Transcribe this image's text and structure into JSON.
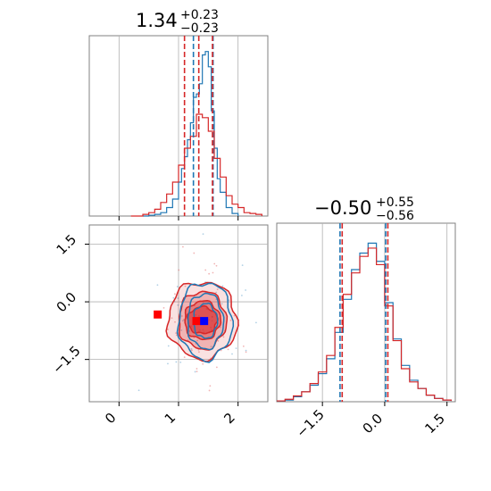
{
  "colors": {
    "blue": "#1f77b4",
    "red": "#d62728",
    "grid": "#b0b0b0",
    "axis": "#808080",
    "blue_marker": "#0000ff",
    "red_marker": "#ff0000"
  },
  "chart_data": {
    "type": "corner",
    "grid": true,
    "panels": {
      "top_left": {
        "type": "histogram",
        "parameter": "x",
        "title": {
          "median": "1.34",
          "plus": "+0.23",
          "minus": "−0.23"
        },
        "xlim": [
          -0.5,
          2.5
        ],
        "quantiles": {
          "blue": [
            1.25,
            1.58
          ],
          "red": [
            1.1,
            1.34,
            1.57
          ]
        },
        "series": [
          {
            "color": "blue",
            "x": [
              0.4,
              0.5,
              0.6,
              0.7,
              0.8,
              0.9,
              1.0,
              1.05,
              1.1,
              1.15,
              1.2,
              1.25,
              1.3,
              1.35,
              1.4,
              1.45,
              1.5,
              1.55,
              1.6,
              1.65,
              1.7,
              1.8,
              1.9,
              2.0
            ],
            "density": [
              0,
              0.005,
              0.01,
              0.02,
              0.05,
              0.1,
              0.2,
              0.28,
              0.35,
              0.45,
              0.55,
              0.7,
              0.72,
              0.78,
              0.95,
              0.97,
              0.88,
              0.62,
              0.4,
              0.22,
              0.14,
              0.05,
              0.015,
              0
            ]
          },
          {
            "color": "red",
            "x": [
              0.2,
              0.4,
              0.5,
              0.6,
              0.7,
              0.8,
              0.9,
              1.0,
              1.1,
              1.2,
              1.3,
              1.4,
              1.5,
              1.6,
              1.7,
              1.8,
              1.9,
              2.0,
              2.1,
              2.2,
              2.3,
              2.4
            ],
            "density": [
              0,
              0.01,
              0.02,
              0.04,
              0.08,
              0.13,
              0.2,
              0.3,
              0.4,
              0.47,
              0.6,
              0.58,
              0.5,
              0.34,
              0.23,
              0.12,
              0.07,
              0.05,
              0.02,
              0.015,
              0.01,
              0
            ]
          }
        ]
      },
      "bottom_left": {
        "type": "2d-contour",
        "xlim": [
          -0.5,
          2.5
        ],
        "ylim": [
          -2.6,
          2.0
        ],
        "xticks": [
          "0",
          "1",
          "2"
        ],
        "yticks": [
          "1.5",
          "0.0",
          "−1.5"
        ],
        "contours": [
          {
            "color": "red",
            "center": [
              1.4,
              -0.48
            ],
            "radii": [
              [
                0.58,
                1.0
              ],
              [
                0.4,
                0.75
              ],
              [
                0.3,
                0.5
              ],
              [
                0.25,
                0.35
              ]
            ]
          },
          {
            "color": "blue",
            "center": [
              1.45,
              -0.5
            ],
            "radii": [
              [
                0.45,
                1.0
              ],
              [
                0.3,
                0.72
              ],
              [
                0.2,
                0.45
              ]
            ]
          }
        ],
        "markers": [
          {
            "color": "red",
            "x": [
              0.65,
              1.3
            ],
            "y": [
              -0.33,
              -0.5
            ]
          },
          {
            "color": "blue",
            "x": [
              1.43
            ],
            "y": [
              -0.5
            ]
          }
        ]
      },
      "bottom_right": {
        "type": "histogram",
        "parameter": "y",
        "title": {
          "median": "−0.50",
          "plus": "+0.55",
          "minus": "−0.56"
        },
        "xlim": [
          -2.6,
          1.7
        ],
        "xticks": [
          "−1.5",
          "0.0",
          "1.5"
        ],
        "quantiles": {
          "blue": [
            -1.05,
            0.05
          ],
          "red": [
            -1.05,
            0.05
          ]
        },
        "series": [
          {
            "color": "blue",
            "x": [
              -2.6,
              -2.4,
              -2.2,
              -2.0,
              -1.8,
              -1.6,
              -1.4,
              -1.2,
              -1.0,
              -0.8,
              -0.6,
              -0.4,
              -0.2,
              0.0,
              0.2,
              0.4,
              0.6,
              0.8,
              1.0,
              1.2,
              1.4,
              1.6
            ],
            "density": [
              0.005,
              0.01,
              0.03,
              0.06,
              0.1,
              0.17,
              0.26,
              0.42,
              0.62,
              0.8,
              0.9,
              0.96,
              0.85,
              0.6,
              0.38,
              0.22,
              0.13,
              0.08,
              0.04,
              0.02,
              0.01,
              0.005
            ]
          },
          {
            "color": "red",
            "x": [
              -2.6,
              -2.4,
              -2.2,
              -2.0,
              -1.8,
              -1.6,
              -1.4,
              -1.2,
              -1.0,
              -0.8,
              -0.6,
              -0.4,
              -0.2,
              0.0,
              0.2,
              0.4,
              0.6,
              0.8,
              1.0,
              1.2,
              1.4,
              1.6
            ],
            "density": [
              0.005,
              0.015,
              0.035,
              0.06,
              0.11,
              0.18,
              0.28,
              0.45,
              0.65,
              0.78,
              0.88,
              0.93,
              0.83,
              0.58,
              0.37,
              0.2,
              0.12,
              0.08,
              0.04,
              0.02,
              0.01,
              0.005
            ]
          }
        ]
      }
    }
  }
}
